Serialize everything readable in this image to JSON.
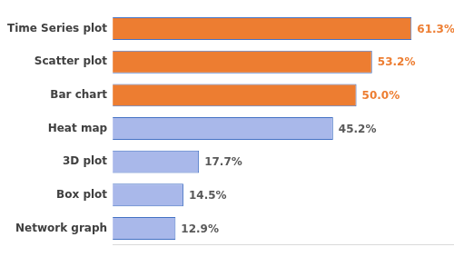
{
  "chart_data": {
    "type": "bar",
    "orientation": "horizontal",
    "categories": [
      "Time Series plot",
      "Scatter plot",
      "Bar chart",
      "Heat map",
      "3D plot",
      "Box plot",
      "Network graph"
    ],
    "values": [
      61.3,
      53.2,
      50.0,
      45.2,
      17.7,
      14.5,
      12.9
    ],
    "value_labels": [
      "61.3%",
      "53.2%",
      "50.0%",
      "45.2%",
      "17.7%",
      "14.5%",
      "12.9%"
    ],
    "colors": [
      "#ed7d31",
      "#ed7d31",
      "#ed7d31",
      "#a9b8ea",
      "#a9b8ea",
      "#a9b8ea",
      "#a9b8ea"
    ],
    "xlim": [
      0,
      70
    ],
    "grid": false,
    "data_labels": true,
    "tick_labels": "y"
  }
}
